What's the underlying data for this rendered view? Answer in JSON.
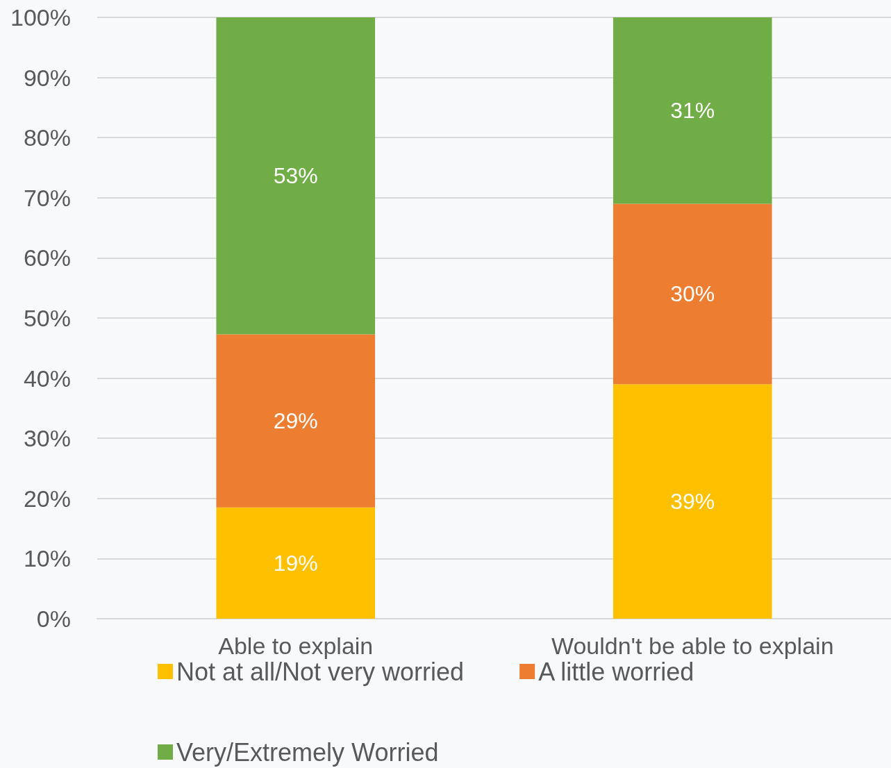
{
  "chart_data": {
    "type": "bar",
    "stacked": true,
    "categories": [
      "Able to explain",
      "Wouldn't be able to explain"
    ],
    "series": [
      {
        "name": "Not at all/Not very worried",
        "color": "#ffc000",
        "values": [
          18.5,
          39
        ],
        "value_labels": [
          "19%",
          "39%"
        ]
      },
      {
        "name": "A little worried",
        "color": "#ed7d31",
        "values": [
          28.8,
          30
        ],
        "value_labels": [
          "29%",
          "30%"
        ]
      },
      {
        "name": "Very/Extremely Worried",
        "color": "#70ad47",
        "values": [
          52.7,
          31
        ],
        "value_labels": [
          "53%",
          "31%"
        ]
      }
    ],
    "ylim": [
      0,
      100
    ],
    "yticks": [
      {
        "value": 0,
        "label": "0%"
      },
      {
        "value": 10,
        "label": "10%"
      },
      {
        "value": 20,
        "label": "20%"
      },
      {
        "value": 30,
        "label": "30%"
      },
      {
        "value": 40,
        "label": "40%"
      },
      {
        "value": 50,
        "label": "50%"
      },
      {
        "value": 60,
        "label": "60%"
      },
      {
        "value": 70,
        "label": "70%"
      },
      {
        "value": 80,
        "label": "80%"
      },
      {
        "value": 90,
        "label": "90%"
      },
      {
        "value": 100,
        "label": "100%"
      }
    ],
    "grid": "y",
    "legend": "bottom"
  }
}
